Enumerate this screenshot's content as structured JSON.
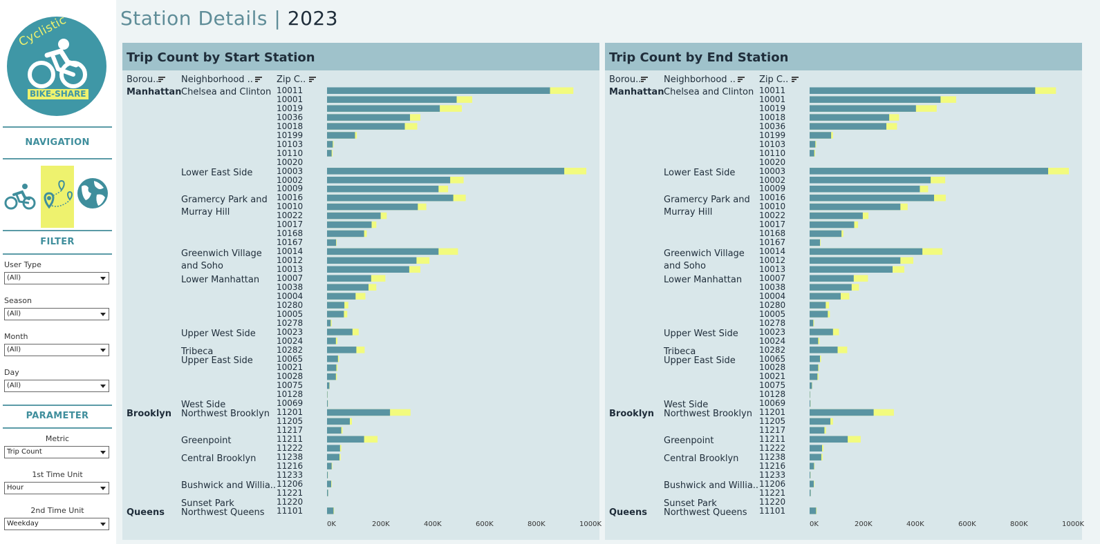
{
  "sidebar": {
    "logo": {
      "brand": "Cyclistic",
      "share": "BIKE-SHARE"
    },
    "navigation_label": "NAVIGATION",
    "nav_icons": [
      "bike-icon",
      "map-route-icon",
      "globe-icon"
    ],
    "filter_label": "FILTER",
    "filters": [
      {
        "label": "User Type",
        "value": "(All)"
      },
      {
        "label": "Season",
        "value": "(All)"
      },
      {
        "label": "Month",
        "value": "(All)"
      },
      {
        "label": "Day",
        "value": "(All)"
      }
    ],
    "parameter_label": "PARAMETER",
    "parameters": [
      {
        "label": "Metric",
        "value": "Trip Count"
      },
      {
        "label": "1st Time Unit",
        "value": "Hour"
      },
      {
        "label": "2nd Time Unit",
        "value": "Weekday"
      }
    ]
  },
  "header": {
    "title": "Station Details",
    "separator": "|",
    "year": "2023"
  },
  "colors": {
    "bar_main": "#5a94a2",
    "bar_accent": "#f2fb7e"
  },
  "columns": {
    "borough": "Borou..",
    "neighborhood": "Neighborhood ..",
    "zip": "Zip C.."
  },
  "axis_ticks": [
    "0K",
    "200K",
    "400K",
    "600K",
    "800K",
    "1000K"
  ],
  "chart_data": [
    {
      "type": "bar",
      "title": "Trip Count by Start Station",
      "xlim": [
        0,
        1000000
      ],
      "boroughs": [
        {
          "name": "Manhattan",
          "row": 0
        },
        {
          "name": "Brooklyn",
          "row": 36
        },
        {
          "name": "Queens",
          "row": 47
        }
      ],
      "neighborhoods": [
        {
          "name": "Chelsea and Clinton",
          "row": 0
        },
        {
          "name": "Lower East Side",
          "row": 9
        },
        {
          "name": "Gramercy Park and Murray Hill",
          "lines": [
            "Gramercy Park and",
            "Murray Hill"
          ],
          "row": 12
        },
        {
          "name": "Greenwich Village and Soho",
          "lines": [
            "Greenwich Village",
            "and Soho"
          ],
          "row": 18
        },
        {
          "name": "Lower Manhattan",
          "row": 21
        },
        {
          "name": "Upper West Side",
          "row": 27
        },
        {
          "name": "Tribeca",
          "row": 29
        },
        {
          "name": "Upper East Side",
          "row": 30
        },
        {
          "name": "West Side",
          "row": 35
        },
        {
          "name": "Northwest Brooklyn",
          "row": 36
        },
        {
          "name": "Greenpoint",
          "row": 39
        },
        {
          "name": "Central Brooklyn",
          "row": 41
        },
        {
          "name": "Bushwick and Willia..",
          "row": 44
        },
        {
          "name": "Sunset Park",
          "row": 46
        },
        {
          "name": "Northwest Queens",
          "row": 47
        }
      ],
      "rows": [
        {
          "zip": "10011",
          "main": 860000,
          "total": 950000
        },
        {
          "zip": "10001",
          "main": 500000,
          "total": 560000
        },
        {
          "zip": "10019",
          "main": 435000,
          "total": 520000
        },
        {
          "zip": "10036",
          "main": 320000,
          "total": 360000
        },
        {
          "zip": "10018",
          "main": 300000,
          "total": 348000
        },
        {
          "zip": "10199",
          "main": 108000,
          "total": 115000
        },
        {
          "zip": "10103",
          "main": 22000,
          "total": 25000
        },
        {
          "zip": "10110",
          "main": 18000,
          "total": 21000
        },
        {
          "zip": "10020",
          "main": 0,
          "total": 0
        },
        {
          "zip": "10003",
          "main": 915000,
          "total": 1000000
        },
        {
          "zip": "10002",
          "main": 475000,
          "total": 527000
        },
        {
          "zip": "10009",
          "main": 430000,
          "total": 467000
        },
        {
          "zip": "10016",
          "main": 487000,
          "total": 535000
        },
        {
          "zip": "10010",
          "main": 350000,
          "total": 383000
        },
        {
          "zip": "10022",
          "main": 207000,
          "total": 230000
        },
        {
          "zip": "10017",
          "main": 172000,
          "total": 190000
        },
        {
          "zip": "10168",
          "main": 143000,
          "total": 153000
        },
        {
          "zip": "10167",
          "main": 35000,
          "total": 37000
        },
        {
          "zip": "10014",
          "main": 430000,
          "total": 505000
        },
        {
          "zip": "10012",
          "main": 345000,
          "total": 395000
        },
        {
          "zip": "10013",
          "main": 317000,
          "total": 360000
        },
        {
          "zip": "10007",
          "main": 170000,
          "total": 225000
        },
        {
          "zip": "10038",
          "main": 160000,
          "total": 190000
        },
        {
          "zip": "10004",
          "main": 110000,
          "total": 148000
        },
        {
          "zip": "10280",
          "main": 67000,
          "total": 82000
        },
        {
          "zip": "10005",
          "main": 65000,
          "total": 78000
        },
        {
          "zip": "10278",
          "main": 14000,
          "total": 18000
        },
        {
          "zip": "10023",
          "main": 98000,
          "total": 122000
        },
        {
          "zip": "10024",
          "main": 34000,
          "total": 40000
        },
        {
          "zip": "10282",
          "main": 113000,
          "total": 145000
        },
        {
          "zip": "10065",
          "main": 42000,
          "total": 46000
        },
        {
          "zip": "10021",
          "main": 36000,
          "total": 40000
        },
        {
          "zip": "10028",
          "main": 34000,
          "total": 38000
        },
        {
          "zip": "10075",
          "main": 9000,
          "total": 10000
        },
        {
          "zip": "10128",
          "main": 1500,
          "total": 2000
        },
        {
          "zip": "10069",
          "main": 3000,
          "total": 3500
        },
        {
          "zip": "11201",
          "main": 243000,
          "total": 322000
        },
        {
          "zip": "11205",
          "main": 88000,
          "total": 96000
        },
        {
          "zip": "11217",
          "main": 55000,
          "total": 60000
        },
        {
          "zip": "11211",
          "main": 143000,
          "total": 195000
        },
        {
          "zip": "11222",
          "main": 50000,
          "total": 55000
        },
        {
          "zip": "11238",
          "main": 48000,
          "total": 52000
        },
        {
          "zip": "11216",
          "main": 18000,
          "total": 20000
        },
        {
          "zip": "11233",
          "main": 3000,
          "total": 3500
        },
        {
          "zip": "11206",
          "main": 16000,
          "total": 18000
        },
        {
          "zip": "11221",
          "main": 4000,
          "total": 4500
        },
        {
          "zip": "11220",
          "main": 0,
          "total": 0
        },
        {
          "zip": "11101",
          "main": 25000,
          "total": 27000
        }
      ]
    },
    {
      "type": "bar",
      "title": "Trip Count by End Station",
      "xlim": [
        0,
        1000000
      ],
      "boroughs": [
        {
          "name": "Manhattan",
          "row": 0
        },
        {
          "name": "Brooklyn",
          "row": 36
        },
        {
          "name": "Queens",
          "row": 47
        }
      ],
      "neighborhoods": [
        {
          "name": "Chelsea and Clinton",
          "row": 0
        },
        {
          "name": "Lower East Side",
          "row": 9
        },
        {
          "name": "Gramercy Park and Murray Hill",
          "lines": [
            "Gramercy Park and",
            "Murray Hill"
          ],
          "row": 12
        },
        {
          "name": "Greenwich Village and Soho",
          "lines": [
            "Greenwich Village",
            "and Soho"
          ],
          "row": 18
        },
        {
          "name": "Lower Manhattan",
          "row": 21
        },
        {
          "name": "Upper West Side",
          "row": 27
        },
        {
          "name": "Tribeca",
          "row": 29
        },
        {
          "name": "Upper East Side",
          "row": 30
        },
        {
          "name": "West Side",
          "row": 35
        },
        {
          "name": "Northwest Brooklyn",
          "row": 36
        },
        {
          "name": "Greenpoint",
          "row": 39
        },
        {
          "name": "Central Brooklyn",
          "row": 41
        },
        {
          "name": "Bushwick and Willia..",
          "row": 44
        },
        {
          "name": "Sunset Park",
          "row": 46
        },
        {
          "name": "Northwest Queens",
          "row": 47
        }
      ],
      "rows": [
        {
          "zip": "10011",
          "main": 870000,
          "total": 950000
        },
        {
          "zip": "10001",
          "main": 505000,
          "total": 565000
        },
        {
          "zip": "10019",
          "main": 410000,
          "total": 490000
        },
        {
          "zip": "10018",
          "main": 307000,
          "total": 345000
        },
        {
          "zip": "10036",
          "main": 296000,
          "total": 337000
        },
        {
          "zip": "10199",
          "main": 83000,
          "total": 90000
        },
        {
          "zip": "10103",
          "main": 22000,
          "total": 25000
        },
        {
          "zip": "10110",
          "main": 18000,
          "total": 21000
        },
        {
          "zip": "10020",
          "main": 0,
          "total": 0
        },
        {
          "zip": "10003",
          "main": 920000,
          "total": 1000000
        },
        {
          "zip": "10002",
          "main": 467000,
          "total": 523000
        },
        {
          "zip": "10009",
          "main": 425000,
          "total": 457000
        },
        {
          "zip": "10016",
          "main": 480000,
          "total": 525000
        },
        {
          "zip": "10010",
          "main": 350000,
          "total": 378000
        },
        {
          "zip": "10022",
          "main": 205000,
          "total": 227000
        },
        {
          "zip": "10017",
          "main": 172000,
          "total": 187000
        },
        {
          "zip": "10168",
          "main": 123000,
          "total": 130000
        },
        {
          "zip": "10167",
          "main": 40000,
          "total": 42000
        },
        {
          "zip": "10014",
          "main": 435000,
          "total": 512000
        },
        {
          "zip": "10012",
          "main": 350000,
          "total": 400000
        },
        {
          "zip": "10013",
          "main": 320000,
          "total": 365000
        },
        {
          "zip": "10007",
          "main": 170000,
          "total": 225000
        },
        {
          "zip": "10038",
          "main": 162000,
          "total": 190000
        },
        {
          "zip": "10004",
          "main": 120000,
          "total": 153000
        },
        {
          "zip": "10280",
          "main": 62000,
          "total": 75000
        },
        {
          "zip": "10005",
          "main": 70000,
          "total": 78000
        },
        {
          "zip": "10278",
          "main": 14000,
          "total": 17000
        },
        {
          "zip": "10023",
          "main": 90000,
          "total": 113000
        },
        {
          "zip": "10024",
          "main": 33000,
          "total": 38000
        },
        {
          "zip": "10282",
          "main": 108000,
          "total": 145000
        },
        {
          "zip": "10065",
          "main": 40000,
          "total": 44000
        },
        {
          "zip": "10028",
          "main": 33000,
          "total": 36000
        },
        {
          "zip": "10021",
          "main": 30000,
          "total": 34000
        },
        {
          "zip": "10075",
          "main": 9000,
          "total": 10000
        },
        {
          "zip": "10128",
          "main": 1500,
          "total": 2000
        },
        {
          "zip": "10069",
          "main": 3000,
          "total": 3500
        },
        {
          "zip": "11201",
          "main": 247000,
          "total": 325000
        },
        {
          "zip": "11205",
          "main": 80000,
          "total": 90000
        },
        {
          "zip": "11217",
          "main": 57000,
          "total": 63000
        },
        {
          "zip": "11211",
          "main": 147000,
          "total": 197000
        },
        {
          "zip": "11222",
          "main": 48000,
          "total": 53000
        },
        {
          "zip": "11238",
          "main": 45000,
          "total": 50000
        },
        {
          "zip": "11216",
          "main": 17000,
          "total": 19000
        },
        {
          "zip": "11233",
          "main": 3000,
          "total": 3500
        },
        {
          "zip": "11206",
          "main": 16000,
          "total": 18000
        },
        {
          "zip": "11221",
          "main": 4000,
          "total": 4500
        },
        {
          "zip": "11220",
          "main": 0,
          "total": 0
        },
        {
          "zip": "11101",
          "main": 25000,
          "total": 27000
        }
      ]
    }
  ]
}
